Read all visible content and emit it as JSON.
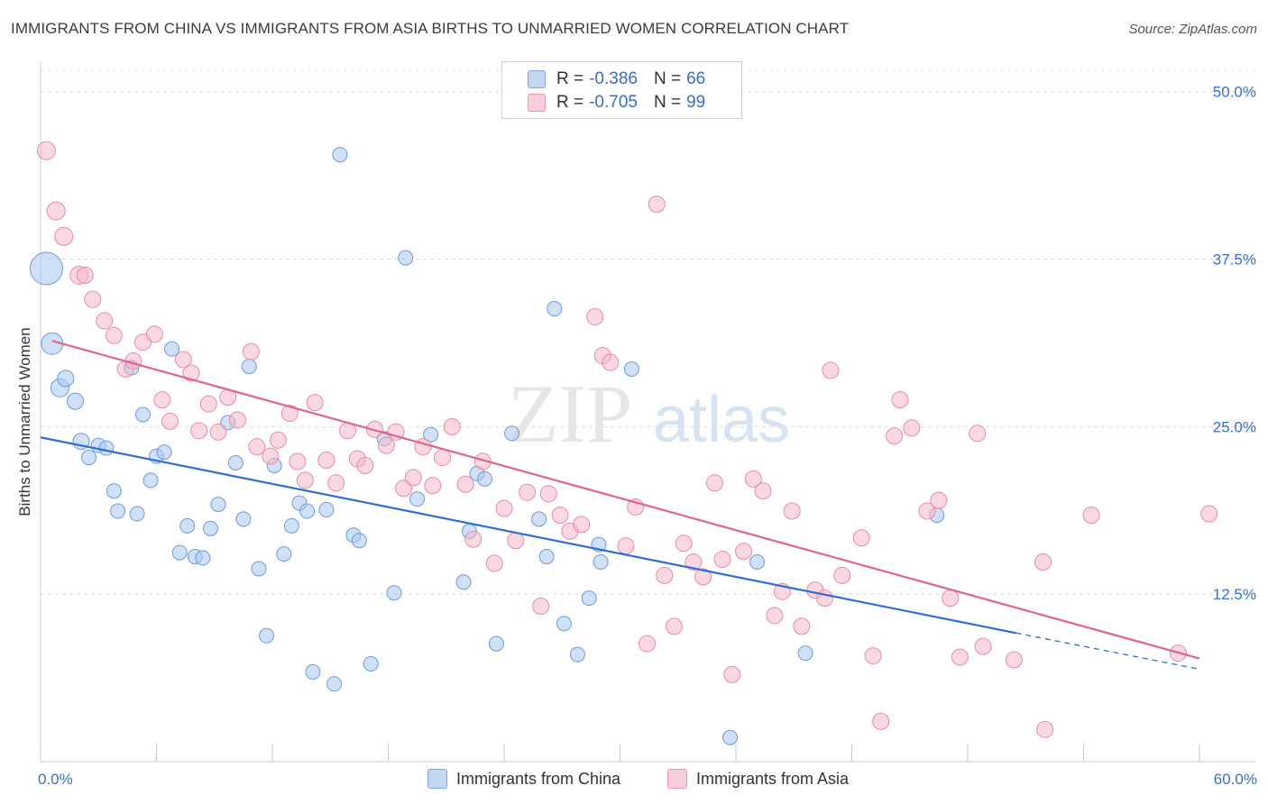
{
  "title": "IMMIGRANTS FROM CHINA VS IMMIGRANTS FROM ASIA BIRTHS TO UNMARRIED WOMEN CORRELATION CHART",
  "source": "Source: ZipAtlas.com",
  "watermark": {
    "zip": "ZIP",
    "atlas": "atlas"
  },
  "legend": {
    "r_label": "R =",
    "n_label": "N =",
    "rows": [
      {
        "r": "-0.386",
        "n": "66",
        "color": "#a9c8f0"
      },
      {
        "r": "-0.705",
        "n": "99",
        "color": "#f6b8c9"
      }
    ]
  },
  "chart_data": {
    "type": "scatter",
    "xlabel": "",
    "ylabel": "Births to Unmarried Women",
    "xlim": [
      0,
      60
    ],
    "ylim": [
      0,
      52
    ],
    "x_tick_labels": [
      "0.0%",
      "60.0%"
    ],
    "y_ticks": [
      12.5,
      25.0,
      37.5,
      50.0
    ],
    "y_tick_labels": [
      "12.5%",
      "25.0%",
      "37.5%",
      "50.0%"
    ],
    "grid": "horizontal dashed",
    "legend_position": "top-center",
    "series": [
      {
        "name": "Immigrants from China",
        "color": "#a9c8f0",
        "stroke": "#6e9ad8",
        "line_color": "#2f6fd0",
        "trend": {
          "x": [
            0,
            50.5
          ],
          "y": [
            24.2,
            9.6
          ],
          "dashed_to_x": 60,
          "dashed_to_y": 6.9
        },
        "points": [
          [
            0.3,
            36.8,
            18
          ],
          [
            0.6,
            31.2,
            12
          ],
          [
            1.0,
            27.9,
            10
          ],
          [
            1.3,
            28.6,
            9
          ],
          [
            1.8,
            26.9,
            9
          ],
          [
            2.1,
            23.9,
            9
          ],
          [
            2.5,
            22.7,
            8
          ],
          [
            3.0,
            23.6,
            8
          ],
          [
            3.4,
            23.4,
            8
          ],
          [
            3.8,
            20.2,
            8
          ],
          [
            4.0,
            18.7,
            8
          ],
          [
            4.7,
            29.4,
            8
          ],
          [
            5.0,
            18.5,
            8
          ],
          [
            5.3,
            25.9,
            8
          ],
          [
            5.7,
            21.0,
            8
          ],
          [
            6.0,
            22.8,
            8
          ],
          [
            6.4,
            23.1,
            8
          ],
          [
            6.8,
            30.8,
            8
          ],
          [
            7.2,
            15.6,
            8
          ],
          [
            7.6,
            17.6,
            8
          ],
          [
            8.0,
            15.3,
            8
          ],
          [
            8.4,
            15.2,
            8
          ],
          [
            8.8,
            17.4,
            8
          ],
          [
            9.2,
            19.2,
            8
          ],
          [
            9.7,
            25.3,
            8
          ],
          [
            10.1,
            22.3,
            8
          ],
          [
            10.5,
            18.1,
            8
          ],
          [
            10.8,
            29.5,
            8
          ],
          [
            11.3,
            14.4,
            8
          ],
          [
            11.7,
            9.4,
            8
          ],
          [
            12.1,
            22.1,
            8
          ],
          [
            12.6,
            15.5,
            8
          ],
          [
            13.0,
            17.6,
            8
          ],
          [
            13.4,
            19.3,
            8
          ],
          [
            13.8,
            18.7,
            8
          ],
          [
            14.1,
            6.7,
            8
          ],
          [
            14.8,
            18.8,
            8
          ],
          [
            15.2,
            5.8,
            8
          ],
          [
            15.5,
            45.3,
            8
          ],
          [
            16.2,
            16.9,
            8
          ],
          [
            16.5,
            16.5,
            8
          ],
          [
            17.1,
            7.3,
            8
          ],
          [
            17.8,
            24.1,
            8
          ],
          [
            18.3,
            12.6,
            8
          ],
          [
            18.9,
            37.6,
            8
          ],
          [
            19.5,
            19.6,
            8
          ],
          [
            20.2,
            24.4,
            8
          ],
          [
            21.9,
            13.4,
            8
          ],
          [
            22.2,
            17.2,
            8
          ],
          [
            22.6,
            21.5,
            8
          ],
          [
            23.0,
            21.1,
            8
          ],
          [
            23.6,
            8.8,
            8
          ],
          [
            24.4,
            24.5,
            8
          ],
          [
            25.8,
            18.1,
            8
          ],
          [
            26.2,
            15.3,
            8
          ],
          [
            26.6,
            33.8,
            8
          ],
          [
            27.1,
            10.3,
            8
          ],
          [
            27.8,
            8.0,
            8
          ],
          [
            28.4,
            12.2,
            8
          ],
          [
            28.9,
            16.2,
            8
          ],
          [
            29.0,
            14.9,
            8
          ],
          [
            30.6,
            29.3,
            8
          ],
          [
            35.7,
            1.8,
            8
          ],
          [
            37.1,
            14.9,
            8
          ],
          [
            39.6,
            8.1,
            8
          ],
          [
            46.4,
            18.4,
            8
          ]
        ]
      },
      {
        "name": "Immigrants from Asia",
        "color": "#f6b8c9",
        "stroke": "#e88aa6",
        "line_color": "#e0648c",
        "trend": {
          "x": [
            0.6,
            60
          ],
          "y": [
            31.4,
            7.7
          ]
        },
        "points": [
          [
            0.3,
            45.6,
            10
          ],
          [
            0.8,
            41.1,
            10
          ],
          [
            1.2,
            39.2,
            10
          ],
          [
            2.0,
            36.3,
            10
          ],
          [
            2.3,
            36.3,
            9
          ],
          [
            2.7,
            34.5,
            9
          ],
          [
            3.3,
            32.9,
            9
          ],
          [
            3.8,
            31.8,
            9
          ],
          [
            4.4,
            29.3,
            9
          ],
          [
            4.8,
            29.9,
            9
          ],
          [
            5.3,
            31.3,
            9
          ],
          [
            5.9,
            31.9,
            9
          ],
          [
            6.3,
            27.0,
            9
          ],
          [
            6.7,
            25.4,
            9
          ],
          [
            7.4,
            30.0,
            9
          ],
          [
            7.8,
            29.0,
            9
          ],
          [
            8.2,
            24.7,
            9
          ],
          [
            8.7,
            26.7,
            9
          ],
          [
            9.2,
            24.6,
            9
          ],
          [
            9.7,
            27.2,
            9
          ],
          [
            10.2,
            25.5,
            9
          ],
          [
            10.9,
            30.6,
            9
          ],
          [
            11.2,
            23.5,
            9
          ],
          [
            11.9,
            22.8,
            9
          ],
          [
            12.3,
            24.0,
            9
          ],
          [
            12.9,
            26.0,
            9
          ],
          [
            13.3,
            22.4,
            9
          ],
          [
            13.7,
            21.0,
            9
          ],
          [
            14.2,
            26.8,
            9
          ],
          [
            14.8,
            22.5,
            9
          ],
          [
            15.3,
            20.8,
            9
          ],
          [
            15.9,
            24.7,
            9
          ],
          [
            16.4,
            22.6,
            9
          ],
          [
            16.8,
            22.1,
            9
          ],
          [
            17.3,
            24.8,
            9
          ],
          [
            17.9,
            23.6,
            9
          ],
          [
            18.4,
            24.6,
            9
          ],
          [
            18.8,
            20.4,
            9
          ],
          [
            19.3,
            21.2,
            9
          ],
          [
            19.8,
            23.5,
            9
          ],
          [
            20.3,
            20.6,
            9
          ],
          [
            20.8,
            22.7,
            9
          ],
          [
            21.3,
            25.0,
            9
          ],
          [
            22.0,
            20.7,
            9
          ],
          [
            22.4,
            16.6,
            9
          ],
          [
            22.9,
            22.4,
            9
          ],
          [
            23.5,
            14.8,
            9
          ],
          [
            24.0,
            18.9,
            9
          ],
          [
            24.6,
            16.5,
            9
          ],
          [
            25.2,
            20.1,
            9
          ],
          [
            25.9,
            11.6,
            9
          ],
          [
            26.3,
            20.0,
            9
          ],
          [
            26.9,
            18.4,
            9
          ],
          [
            27.4,
            17.2,
            9
          ],
          [
            28.0,
            17.7,
            9
          ],
          [
            28.7,
            33.2,
            9
          ],
          [
            29.1,
            30.3,
            9
          ],
          [
            29.5,
            29.8,
            9
          ],
          [
            30.3,
            16.1,
            9
          ],
          [
            30.8,
            19.0,
            9
          ],
          [
            31.4,
            8.8,
            9
          ],
          [
            31.9,
            41.6,
            9
          ],
          [
            32.3,
            13.9,
            9
          ],
          [
            32.8,
            10.1,
            9
          ],
          [
            33.3,
            16.3,
            9
          ],
          [
            33.8,
            14.9,
            9
          ],
          [
            34.3,
            13.8,
            9
          ],
          [
            34.9,
            20.8,
            9
          ],
          [
            35.3,
            15.1,
            9
          ],
          [
            35.8,
            6.5,
            9
          ],
          [
            36.4,
            15.7,
            9
          ],
          [
            36.9,
            21.1,
            9
          ],
          [
            37.4,
            20.2,
            9
          ],
          [
            38.0,
            10.9,
            9
          ],
          [
            38.4,
            12.7,
            9
          ],
          [
            38.9,
            18.7,
            9
          ],
          [
            39.4,
            10.1,
            9
          ],
          [
            40.1,
            12.8,
            9
          ],
          [
            40.6,
            12.2,
            9
          ],
          [
            40.9,
            29.2,
            9
          ],
          [
            41.5,
            13.9,
            9
          ],
          [
            42.5,
            16.7,
            9
          ],
          [
            43.1,
            7.9,
            9
          ],
          [
            43.5,
            3.0,
            9
          ],
          [
            44.2,
            24.3,
            9
          ],
          [
            44.5,
            27.0,
            9
          ],
          [
            45.1,
            24.9,
            9
          ],
          [
            45.9,
            18.7,
            9
          ],
          [
            46.5,
            19.5,
            9
          ],
          [
            47.1,
            12.2,
            9
          ],
          [
            47.6,
            7.8,
            9
          ],
          [
            48.5,
            24.5,
            9
          ],
          [
            48.8,
            8.6,
            9
          ],
          [
            50.4,
            7.6,
            9
          ],
          [
            51.9,
            14.9,
            9
          ],
          [
            52.0,
            2.4,
            9
          ],
          [
            54.4,
            18.4,
            9
          ],
          [
            58.9,
            8.1,
            9
          ],
          [
            60.5,
            18.5,
            9
          ]
        ]
      }
    ]
  }
}
